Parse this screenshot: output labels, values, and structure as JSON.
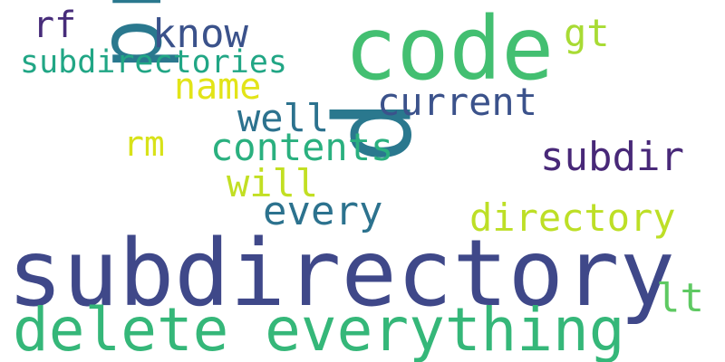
{
  "words": {
    "subdirectory": {
      "text": "subdirectory",
      "color": "#3f4889"
    },
    "delete": {
      "text": "delete everything",
      "color": "#35b779"
    },
    "code": {
      "text": "code",
      "color": "#43bf71"
    },
    "p": {
      "text": "p",
      "color": "#2a788e"
    },
    "pre": {
      "text": "pre",
      "color": "#2a788e"
    },
    "subdirectories": {
      "text": "subdirectories",
      "color": "#21a685"
    },
    "rf": {
      "text": "rf",
      "color": "#472c7a"
    },
    "know": {
      "text": "know",
      "color": "#3b528b"
    },
    "name": {
      "text": "name",
      "color": "#e2e418"
    },
    "gt": {
      "text": "gt",
      "color": "#a8db34"
    },
    "current": {
      "text": "current",
      "color": "#3b528b"
    },
    "well": {
      "text": "well",
      "color": "#2c728e"
    },
    "contents": {
      "text": "contents",
      "color": "#2ab07f"
    },
    "rm": {
      "text": "rm",
      "color": "#d8e219"
    },
    "subdir": {
      "text": "subdir",
      "color": "#482878"
    },
    "will": {
      "text": "will",
      "color": "#c2df23"
    },
    "every": {
      "text": "every",
      "color": "#2c728e"
    },
    "directory": {
      "text": "directory",
      "color": "#bddf26"
    },
    "lt": {
      "text": "lt",
      "color": "#5ec962"
    }
  }
}
